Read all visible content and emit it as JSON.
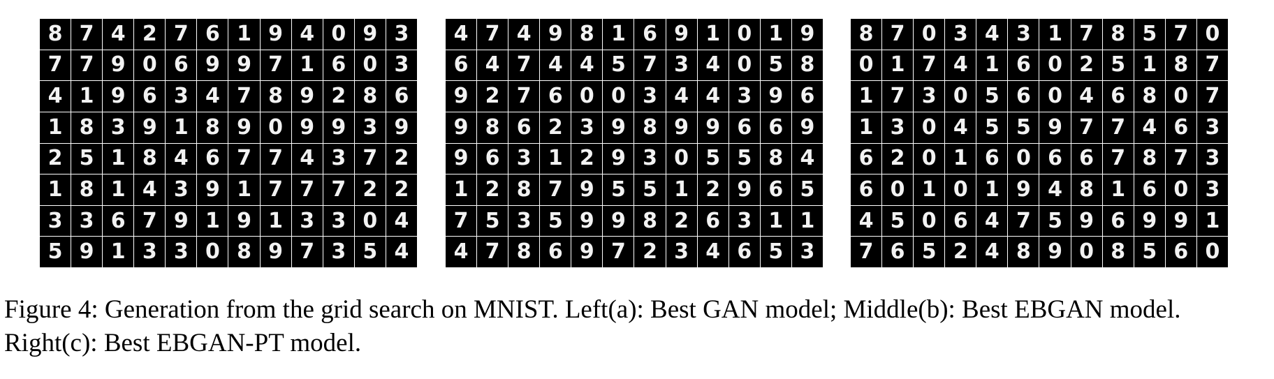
{
  "figure": {
    "caption": "Figure 4: Generation from the grid search on MNIST. Left(a): Best GAN model; Middle(b): Best EBGAN model. Right(c): Best EBGAN-PT model.",
    "colors": {
      "cell_background": "#000000",
      "digit": "#f2f2f2",
      "grid_line": "#ffffff"
    },
    "panels": [
      {
        "id": "a",
        "rows": [
          [
            "8",
            "7",
            "4",
            "2",
            "7",
            "6",
            "1",
            "9",
            "4",
            "0",
            "9",
            "3"
          ],
          [
            "7",
            "7",
            "9",
            "0",
            "6",
            "9",
            "9",
            "7",
            "1",
            "6",
            "0",
            "3"
          ],
          [
            "4",
            "1",
            "9",
            "6",
            "3",
            "4",
            "7",
            "8",
            "9",
            "2",
            "8",
            "6"
          ],
          [
            "1",
            "8",
            "3",
            "9",
            "1",
            "8",
            "9",
            "0",
            "9",
            "9",
            "3",
            "9"
          ],
          [
            "2",
            "5",
            "1",
            "8",
            "4",
            "6",
            "7",
            "7",
            "4",
            "3",
            "7",
            "2"
          ],
          [
            "1",
            "8",
            "1",
            "4",
            "3",
            "9",
            "1",
            "7",
            "7",
            "7",
            "2",
            "2"
          ],
          [
            "3",
            "3",
            "6",
            "7",
            "9",
            "1",
            "9",
            "1",
            "3",
            "3",
            "0",
            "4"
          ],
          [
            "5",
            "9",
            "1",
            "3",
            "3",
            "0",
            "8",
            "9",
            "7",
            "3",
            "5",
            "4"
          ]
        ]
      },
      {
        "id": "b",
        "rows": [
          [
            "4",
            "7",
            "4",
            "9",
            "8",
            "1",
            "6",
            "9",
            "1",
            "0",
            "1",
            "9"
          ],
          [
            "6",
            "4",
            "7",
            "4",
            "4",
            "5",
            "7",
            "3",
            "4",
            "0",
            "5",
            "8"
          ],
          [
            "9",
            "2",
            "7",
            "6",
            "0",
            "0",
            "3",
            "4",
            "4",
            "3",
            "9",
            "6"
          ],
          [
            "9",
            "8",
            "6",
            "2",
            "3",
            "9",
            "8",
            "9",
            "9",
            "6",
            "6",
            "9"
          ],
          [
            "9",
            "6",
            "3",
            "1",
            "2",
            "9",
            "3",
            "0",
            "5",
            "5",
            "8",
            "4"
          ],
          [
            "1",
            "2",
            "8",
            "7",
            "9",
            "5",
            "5",
            "1",
            "2",
            "9",
            "6",
            "5"
          ],
          [
            "7",
            "5",
            "3",
            "5",
            "9",
            "9",
            "8",
            "2",
            "6",
            "3",
            "1",
            "1"
          ],
          [
            "4",
            "7",
            "8",
            "6",
            "9",
            "7",
            "2",
            "3",
            "4",
            "6",
            "5",
            "3"
          ]
        ]
      },
      {
        "id": "c",
        "rows": [
          [
            "8",
            "7",
            "0",
            "3",
            "4",
            "3",
            "1",
            "7",
            "8",
            "5",
            "7",
            "0"
          ],
          [
            "0",
            "1",
            "7",
            "4",
            "1",
            "6",
            "0",
            "2",
            "5",
            "1",
            "8",
            "7"
          ],
          [
            "1",
            "7",
            "3",
            "0",
            "5",
            "6",
            "0",
            "4",
            "6",
            "8",
            "0",
            "7"
          ],
          [
            "1",
            "3",
            "0",
            "4",
            "5",
            "5",
            "9",
            "7",
            "7",
            "4",
            "6",
            "3"
          ],
          [
            "6",
            "2",
            "0",
            "1",
            "6",
            "0",
            "6",
            "6",
            "7",
            "8",
            "7",
            "3"
          ],
          [
            "6",
            "0",
            "1",
            "0",
            "1",
            "9",
            "4",
            "8",
            "1",
            "6",
            "0",
            "3"
          ],
          [
            "4",
            "5",
            "0",
            "6",
            "4",
            "7",
            "5",
            "9",
            "6",
            "9",
            "9",
            "1"
          ],
          [
            "7",
            "6",
            "5",
            "2",
            "4",
            "8",
            "9",
            "0",
            "8",
            "5",
            "6",
            "0"
          ]
        ]
      }
    ]
  }
}
